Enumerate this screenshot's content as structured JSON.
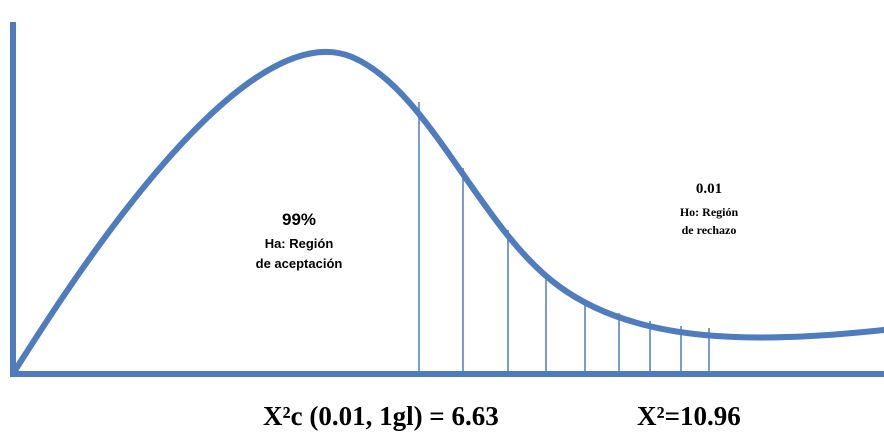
{
  "acceptance": {
    "percent": "99%",
    "line1": "Ha: Región",
    "line2": "de aceptación"
  },
  "rejection": {
    "alpha": "0.01",
    "line1": "Ho: Región",
    "line2": "de rechazo"
  },
  "critical_value_label": "X²c (0.01, 1gl) = 6.63",
  "calculated_value_label": "X²=10.96",
  "colors": {
    "curve": "#4f7bbf",
    "hatch": "#4f7bbf",
    "axes": "#4f7bbf",
    "text": "#000000"
  }
}
